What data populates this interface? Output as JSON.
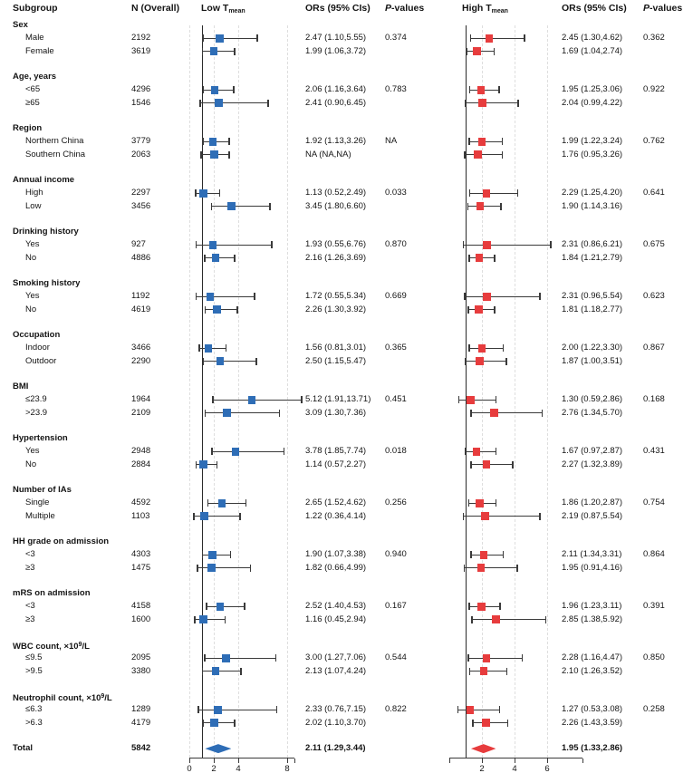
{
  "header": {
    "subgroup": "Subgroup",
    "n": "N (Overall)",
    "or": "ORs (95% CIs)",
    "p_italic": "P",
    "p_rest": "-values"
  },
  "chart_data": {
    "type": "forest",
    "panels": [
      {
        "id": "low",
        "label": "Low T",
        "label_sub": "mean",
        "color": "#2e6db6",
        "axis": {
          "min": 0,
          "max": 9.2,
          "ticks": [
            0,
            2,
            4,
            8
          ],
          "tick_labels": [
            "0",
            "2",
            "4",
            "8"
          ],
          "ref_line": 1
        }
      },
      {
        "id": "high",
        "label": "High T",
        "label_sub": "mean",
        "color": "#e73c3d",
        "axis": {
          "min": 0,
          "max": 8.2,
          "ticks": [
            2,
            4,
            6
          ],
          "tick_labels": [
            "2",
            "4",
            "6"
          ],
          "ref_line": 1
        }
      }
    ],
    "groups": [
      {
        "label": "Sex",
        "p_low": "0.374",
        "p_high": "0.362",
        "rows": [
          {
            "label": "Male",
            "n": "2192",
            "low": {
              "or": 2.47,
              "lo": 1.1,
              "hi": 5.55,
              "text": "2.47 (1.10,5.55)"
            },
            "high": {
              "or": 2.45,
              "lo": 1.3,
              "hi": 4.62,
              "text": "2.45 (1.30,4.62)"
            }
          },
          {
            "label": "Female",
            "n": "3619",
            "low": {
              "or": 1.99,
              "lo": 1.06,
              "hi": 3.72,
              "text": "1.99 (1.06,3.72)"
            },
            "high": {
              "or": 1.69,
              "lo": 1.04,
              "hi": 2.74,
              "text": "1.69 (1.04,2.74)"
            }
          }
        ]
      },
      {
        "label": "Age, years",
        "p_low": "0.783",
        "p_high": "0.922",
        "rows": [
          {
            "label": "<65",
            "n": "4296",
            "low": {
              "or": 2.06,
              "lo": 1.16,
              "hi": 3.64,
              "text": "2.06 (1.16,3.64)"
            },
            "high": {
              "or": 1.95,
              "lo": 1.25,
              "hi": 3.06,
              "text": "1.95 (1.25,3.06)"
            }
          },
          {
            "label": "≥65",
            "n": "1546",
            "low": {
              "or": 2.41,
              "lo": 0.9,
              "hi": 6.45,
              "text": "2.41 (0.90,6.45)"
            },
            "high": {
              "or": 2.04,
              "lo": 0.99,
              "hi": 4.22,
              "text": "2.04 (0.99,4.22)"
            }
          }
        ]
      },
      {
        "label": "Region",
        "p_low": "NA",
        "p_high": "0.762",
        "rows": [
          {
            "label": "Northern China",
            "n": "3779",
            "low": {
              "or": 1.92,
              "lo": 1.13,
              "hi": 3.26,
              "text": "1.92 (1.13,3.26)"
            },
            "high": {
              "or": 1.99,
              "lo": 1.22,
              "hi": 3.24,
              "text": "1.99 (1.22,3.24)"
            }
          },
          {
            "label": "Southern China",
            "n": "2063",
            "low": {
              "or": 2.05,
              "lo": 0.95,
              "hi": 3.26,
              "text": "NA (NA,NA)"
            },
            "high": {
              "or": 1.76,
              "lo": 0.95,
              "hi": 3.26,
              "text": "1.76 (0.95,3.26)"
            }
          }
        ]
      },
      {
        "label": "Annual income",
        "p_low": "0.033",
        "p_high": "0.641",
        "rows": [
          {
            "label": "High",
            "n": "2297",
            "low": {
              "or": 1.13,
              "lo": 0.52,
              "hi": 2.49,
              "text": "1.13 (0.52,2.49)"
            },
            "high": {
              "or": 2.29,
              "lo": 1.25,
              "hi": 4.2,
              "text": "2.29 (1.25,4.20)"
            }
          },
          {
            "label": "Low",
            "n": "3456",
            "low": {
              "or": 3.45,
              "lo": 1.8,
              "hi": 6.6,
              "text": "3.45 (1.80,6.60)"
            },
            "high": {
              "or": 1.9,
              "lo": 1.14,
              "hi": 3.16,
              "text": "1.90 (1.14,3.16)"
            }
          }
        ]
      },
      {
        "label": "Drinking history",
        "p_low": "0.870",
        "p_high": "0.675",
        "rows": [
          {
            "label": "Yes",
            "n": "927",
            "low": {
              "or": 1.93,
              "lo": 0.55,
              "hi": 6.76,
              "text": "1.93 (0.55,6.76)"
            },
            "high": {
              "or": 2.31,
              "lo": 0.86,
              "hi": 6.21,
              "text": "2.31 (0.86,6.21)"
            }
          },
          {
            "label": "No",
            "n": "4886",
            "low": {
              "or": 2.16,
              "lo": 1.26,
              "hi": 3.69,
              "text": "2.16 (1.26,3.69)"
            },
            "high": {
              "or": 1.84,
              "lo": 1.21,
              "hi": 2.79,
              "text": "1.84 (1.21,2.79)"
            }
          }
        ]
      },
      {
        "label": "Smoking history",
        "p_low": "0.669",
        "p_high": "0.623",
        "rows": [
          {
            "label": "Yes",
            "n": "1192",
            "low": {
              "or": 1.72,
              "lo": 0.55,
              "hi": 5.34,
              "text": "1.72 (0.55,5.34)"
            },
            "high": {
              "or": 2.31,
              "lo": 0.96,
              "hi": 5.54,
              "text": "2.31 (0.96,5.54)"
            }
          },
          {
            "label": "No",
            "n": "4619",
            "low": {
              "or": 2.26,
              "lo": 1.3,
              "hi": 3.92,
              "text": "2.26 (1.30,3.92)"
            },
            "high": {
              "or": 1.81,
              "lo": 1.18,
              "hi": 2.77,
              "text": "1.81 (1.18,2.77)"
            }
          }
        ]
      },
      {
        "label": "Occupation",
        "p_low": "0.365",
        "p_high": "0.867",
        "rows": [
          {
            "label": "Indoor",
            "n": "3466",
            "low": {
              "or": 1.56,
              "lo": 0.81,
              "hi": 3.01,
              "text": "1.56 (0.81,3.01)"
            },
            "high": {
              "or": 2.0,
              "lo": 1.22,
              "hi": 3.3,
              "text": "2.00 (1.22,3.30)"
            }
          },
          {
            "label": "Outdoor",
            "n": "2290",
            "low": {
              "or": 2.5,
              "lo": 1.15,
              "hi": 5.47,
              "text": "2.50 (1.15,5.47)"
            },
            "high": {
              "or": 1.87,
              "lo": 1.0,
              "hi": 3.51,
              "text": "1.87 (1.00,3.51)"
            }
          }
        ]
      },
      {
        "label": "BMI",
        "p_low": "0.451",
        "p_high": "0.168",
        "rows": [
          {
            "label": "≤23.9",
            "n": "1964",
            "low": {
              "or": 5.12,
              "lo": 1.91,
              "hi": 13.71,
              "text": "5.12 (1.91,13.71)"
            },
            "high": {
              "or": 1.3,
              "lo": 0.59,
              "hi": 2.86,
              "text": "1.30 (0.59,2.86)"
            }
          },
          {
            "label": ">23.9",
            "n": "2109",
            "low": {
              "or": 3.09,
              "lo": 1.3,
              "hi": 7.36,
              "text": "3.09 (1.30,7.36)"
            },
            "high": {
              "or": 2.76,
              "lo": 1.34,
              "hi": 5.7,
              "text": "2.76 (1.34,5.70)"
            }
          }
        ]
      },
      {
        "label": "Hypertension",
        "p_low": "0.018",
        "p_high": "0.431",
        "rows": [
          {
            "label": "Yes",
            "n": "2948",
            "low": {
              "or": 3.78,
              "lo": 1.85,
              "hi": 7.74,
              "text": "3.78 (1.85,7.74)"
            },
            "high": {
              "or": 1.67,
              "lo": 0.97,
              "hi": 2.87,
              "text": "1.67 (0.97,2.87)"
            }
          },
          {
            "label": "No",
            "n": "2884",
            "low": {
              "or": 1.14,
              "lo": 0.57,
              "hi": 2.27,
              "text": "1.14 (0.57,2.27)"
            },
            "high": {
              "or": 2.27,
              "lo": 1.32,
              "hi": 3.89,
              "text": "2.27 (1.32,3.89)"
            }
          }
        ]
      },
      {
        "label": "Number of IAs",
        "p_low": "0.256",
        "p_high": "0.754",
        "rows": [
          {
            "label": "Single",
            "n": "4592",
            "low": {
              "or": 2.65,
              "lo": 1.52,
              "hi": 4.62,
              "text": "2.65 (1.52,4.62)"
            },
            "high": {
              "or": 1.86,
              "lo": 1.2,
              "hi": 2.87,
              "text": "1.86 (1.20,2.87)"
            }
          },
          {
            "label": "Multiple",
            "n": "1103",
            "low": {
              "or": 1.22,
              "lo": 0.36,
              "hi": 4.14,
              "text": "1.22 (0.36,4.14)"
            },
            "high": {
              "or": 2.19,
              "lo": 0.87,
              "hi": 5.54,
              "text": "2.19 (0.87,5.54)"
            }
          }
        ]
      },
      {
        "label": "HH grade on admission",
        "p_low": "0.940",
        "p_high": "0.864",
        "rows": [
          {
            "label": "<3",
            "n": "4303",
            "low": {
              "or": 1.9,
              "lo": 1.07,
              "hi": 3.38,
              "text": "1.90 (1.07,3.38)"
            },
            "high": {
              "or": 2.11,
              "lo": 1.34,
              "hi": 3.31,
              "text": "2.11 (1.34,3.31)"
            }
          },
          {
            "label": "≥3",
            "n": "1475",
            "low": {
              "or": 1.82,
              "lo": 0.66,
              "hi": 4.99,
              "text": "1.82 (0.66,4.99)"
            },
            "high": {
              "or": 1.95,
              "lo": 0.91,
              "hi": 4.16,
              "text": "1.95 (0.91,4.16)"
            }
          }
        ]
      },
      {
        "label": "mRS on admission",
        "p_low": "0.167",
        "p_high": "0.391",
        "rows": [
          {
            "label": "<3",
            "n": "4158",
            "low": {
              "or": 2.52,
              "lo": 1.4,
              "hi": 4.53,
              "text": "2.52 (1.40,4.53)"
            },
            "high": {
              "or": 1.96,
              "lo": 1.23,
              "hi": 3.11,
              "text": "1.96 (1.23,3.11)"
            }
          },
          {
            "label": "≥3",
            "n": "1600",
            "low": {
              "or": 1.16,
              "lo": 0.45,
              "hi": 2.94,
              "text": "1.16 (0.45,2.94)"
            },
            "high": {
              "or": 2.85,
              "lo": 1.38,
              "hi": 5.92,
              "text": "2.85 (1.38,5.92)"
            }
          }
        ]
      },
      {
        "label": "WBC count, ×10^9/L",
        "p_low": "0.544",
        "p_high": "0.850",
        "rows": [
          {
            "label": "≤9.5",
            "n": "2095",
            "low": {
              "or": 3.0,
              "lo": 1.27,
              "hi": 7.06,
              "text": "3.00 (1.27,7.06)"
            },
            "high": {
              "or": 2.28,
              "lo": 1.16,
              "hi": 4.47,
              "text": "2.28 (1.16,4.47)"
            }
          },
          {
            "label": ">9.5",
            "n": "3380",
            "low": {
              "or": 2.13,
              "lo": 1.07,
              "hi": 4.24,
              "text": "2.13 (1.07,4.24)"
            },
            "high": {
              "or": 2.1,
              "lo": 1.26,
              "hi": 3.52,
              "text": "2.10 (1.26,3.52)"
            }
          }
        ]
      },
      {
        "label": "Neutrophil count, ×10^9/L",
        "p_low": "0.822",
        "p_high": "0.258",
        "rows": [
          {
            "label": "≤6.3",
            "n": "1289",
            "low": {
              "or": 2.33,
              "lo": 0.76,
              "hi": 7.15,
              "text": "2.33 (0.76,7.15)"
            },
            "high": {
              "or": 1.27,
              "lo": 0.53,
              "hi": 3.08,
              "text": "1.27 (0.53,3.08)"
            }
          },
          {
            "label": ">6.3",
            "n": "4179",
            "low": {
              "or": 2.02,
              "lo": 1.1,
              "hi": 3.7,
              "text": "2.02 (1.10,3.70)"
            },
            "high": {
              "or": 2.26,
              "lo": 1.43,
              "hi": 3.59,
              "text": "2.26 (1.43,3.59)"
            }
          }
        ]
      }
    ],
    "total": {
      "label": "Total",
      "n": "5842",
      "low": {
        "or": 2.11,
        "lo": 1.29,
        "hi": 3.44,
        "text": "2.11 (1.29,3.44)"
      },
      "high": {
        "or": 1.95,
        "lo": 1.33,
        "hi": 2.86,
        "text": "1.95 (1.33,2.86)"
      }
    }
  }
}
